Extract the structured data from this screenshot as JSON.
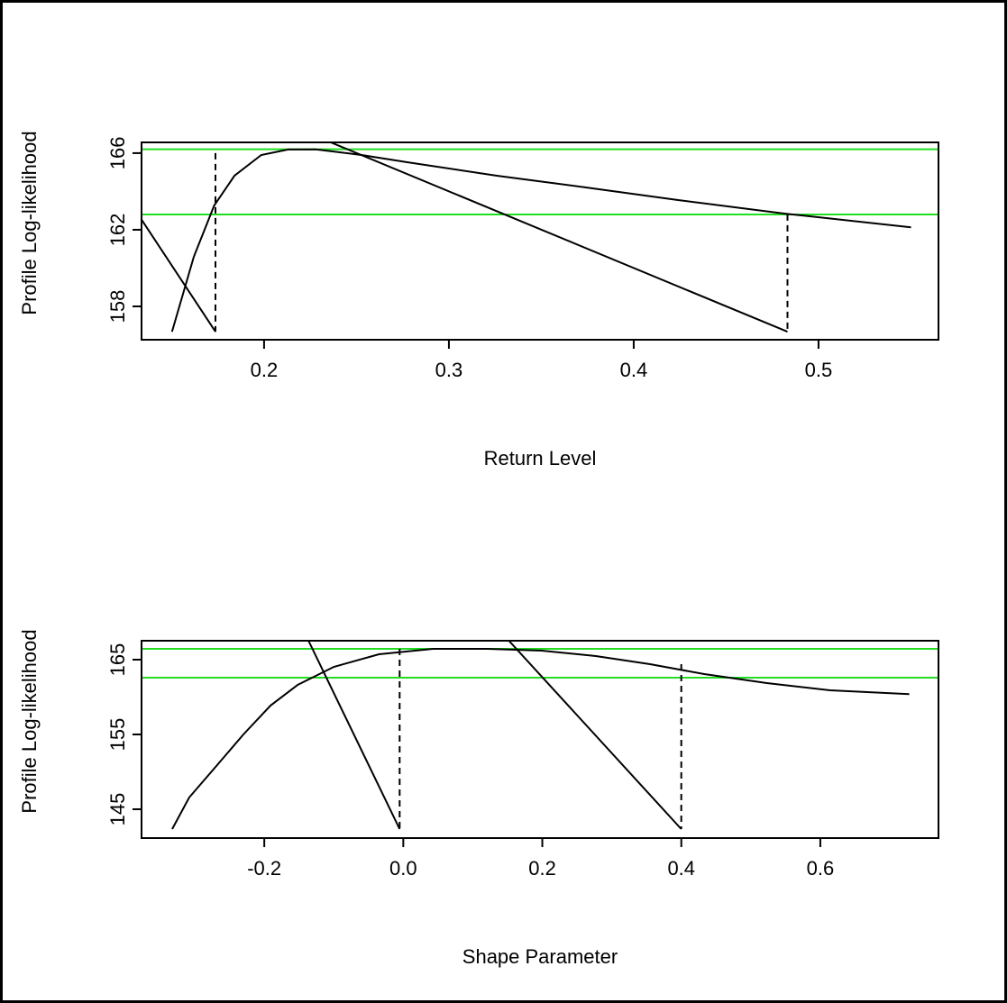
{
  "chart_data": [
    {
      "type": "line",
      "x_label": "Return Level",
      "y_label": "Profile Log-likelihood",
      "xlim": [
        0.1337,
        0.5649
      ],
      "ylim": [
        156.26,
        166.56
      ],
      "xticks": [
        0.2,
        0.3,
        0.4,
        0.5
      ],
      "yticks": [
        158,
        162,
        166
      ],
      "hlines": [
        166.2,
        162.8
      ],
      "hline_color": "#22dd22",
      "series": [
        {
          "color": "#000000",
          "x": [
            0.1502,
            0.162,
            0.173,
            0.184,
            0.1985,
            0.213,
            0.228,
            0.2527,
            0.277,
            0.326,
            0.375,
            0.424,
            0.482,
            0.55
          ],
          "values": [
            156.68,
            160.59,
            163.27,
            164.82,
            165.9,
            166.19,
            166.2,
            165.9,
            165.53,
            164.82,
            164.2,
            163.55,
            162.84,
            162.13
          ]
        },
        {
          "color": "#000000",
          "x": [
            0.1337,
            0.1737
          ],
          "values": [
            162.53,
            156.68
          ]
        },
        {
          "color": "#000000",
          "x": [
            0.2361,
            0.4832
          ],
          "values": [
            166.56,
            156.68
          ]
        },
        {
          "color": "#000000",
          "dashed": true,
          "x": [
            0.1737,
            0.1737
          ],
          "values": [
            166.0,
            156.68
          ]
        },
        {
          "color": "#000000",
          "dashed": true,
          "x": [
            0.4832,
            0.4832
          ],
          "values": [
            162.8,
            156.68
          ]
        }
      ]
    },
    {
      "type": "line",
      "x_label": "Shape Parameter",
      "y_label": "Profile Log-likelihood",
      "xlim": [
        -0.3766,
        0.77
      ],
      "ylim": [
        141.14,
        167.53
      ],
      "xticks": [
        -0.2,
        {
          "value": 0,
          "label": "0.0"
        },
        0.2,
        0.4,
        0.6
      ],
      "yticks": [
        145,
        155,
        165
      ],
      "hlines": [
        166.45,
        162.59
      ],
      "hline_color": "#22dd22",
      "series": [
        {
          "color": "#000000",
          "x": [
            -0.3325,
            -0.308,
            -0.269,
            -0.23,
            -0.191,
            -0.152,
            -0.1,
            -0.035,
            0.043,
            0.121,
            0.199,
            0.277,
            0.355,
            0.433,
            0.523,
            0.614,
            0.728
          ],
          "values": [
            142.35,
            146.57,
            150.78,
            155,
            158.86,
            161.63,
            164.04,
            165.72,
            166.45,
            166.45,
            166.2,
            165.48,
            164.4,
            163.07,
            161.87,
            160.9,
            160.4
          ]
        },
        {
          "color": "#000000",
          "x": [
            -0.1364,
            -0.0052
          ],
          "values": [
            167.53,
            142.35
          ]
        },
        {
          "color": "#000000",
          "x": [
            0.1519,
            0.4
          ],
          "values": [
            167.53,
            142.35
          ]
        },
        {
          "color": "#000000",
          "dashed": true,
          "x": [
            -0.0052,
            -0.0052
          ],
          "values": [
            166.45,
            142.35
          ]
        },
        {
          "color": "#000000",
          "dashed": true,
          "x": [
            0.4,
            0.4
          ],
          "values": [
            164.4,
            142.35
          ]
        }
      ]
    }
  ]
}
